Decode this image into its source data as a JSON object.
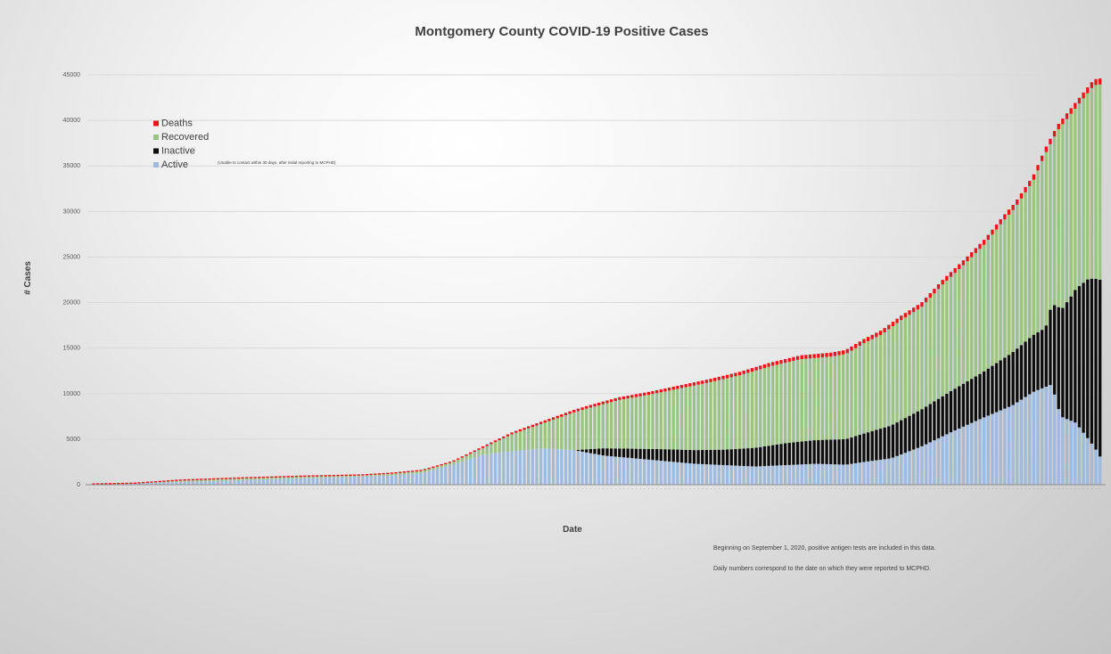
{
  "chart_data": {
    "type": "bar",
    "stacked": true,
    "title": "Montgomery County COVID-19 Positive Cases",
    "xlabel": "Date",
    "ylabel": "# Cases",
    "ylim": [
      0,
      45000
    ],
    "yticks": [
      0,
      5000,
      10000,
      15000,
      20000,
      25000,
      30000,
      35000,
      40000,
      45000
    ],
    "grid": true,
    "legend_position": "top-left",
    "series": [
      {
        "name": "Deaths",
        "color": "#e8161b"
      },
      {
        "name": "Recovered",
        "color": "#9bc386"
      },
      {
        "name": "Inactive",
        "color": "#0d0d0d"
      },
      {
        "name": "Active",
        "color": "#9fbadb"
      }
    ],
    "inactive_note": "(Unable to contact within 30 days, after initial reporting to MCPHD)",
    "bar_count": 245,
    "total_keyframes": [
      [
        0,
        0
      ],
      [
        15,
        100
      ],
      [
        30,
        450
      ],
      [
        50,
        700
      ],
      [
        70,
        900
      ],
      [
        90,
        1050
      ],
      [
        100,
        1250
      ],
      [
        110,
        1600
      ],
      [
        120,
        2600
      ],
      [
        130,
        4200
      ],
      [
        140,
        5800
      ],
      [
        150,
        7000
      ],
      [
        160,
        8200
      ],
      [
        165,
        8700
      ],
      [
        175,
        9600
      ],
      [
        185,
        10200
      ],
      [
        195,
        10900
      ],
      [
        205,
        11600
      ],
      [
        215,
        12400
      ],
      [
        225,
        13400
      ],
      [
        235,
        14200
      ],
      [
        245,
        14500
      ],
      [
        250,
        14800
      ],
      [
        256,
        16000
      ],
      [
        262,
        17000
      ],
      [
        268,
        18500
      ],
      [
        275,
        20000
      ],
      [
        282,
        22500
      ],
      [
        290,
        25000
      ],
      [
        296,
        27000
      ],
      [
        302,
        29500
      ],
      [
        306,
        31000
      ],
      [
        312,
        34000
      ],
      [
        316,
        37000
      ],
      [
        320,
        39500
      ],
      [
        326,
        42000
      ],
      [
        332,
        44500
      ],
      [
        334,
        44600
      ]
    ],
    "active_keyframes": [
      [
        0,
        0
      ],
      [
        50,
        500
      ],
      [
        100,
        1000
      ],
      [
        110,
        1300
      ],
      [
        120,
        2200
      ],
      [
        130,
        3300
      ],
      [
        140,
        3700
      ],
      [
        150,
        4000
      ],
      [
        160,
        3800
      ],
      [
        170,
        3200
      ],
      [
        180,
        2900
      ],
      [
        200,
        2300
      ],
      [
        220,
        2000
      ],
      [
        240,
        2300
      ],
      [
        250,
        2200
      ],
      [
        256,
        2500
      ],
      [
        265,
        2900
      ],
      [
        275,
        4200
      ],
      [
        285,
        5800
      ],
      [
        295,
        7300
      ],
      [
        305,
        8700
      ],
      [
        312,
        10200
      ],
      [
        318,
        11000
      ],
      [
        321,
        7500
      ],
      [
        326,
        6800
      ],
      [
        332,
        4200
      ],
      [
        334,
        3100
      ]
    ],
    "inactive_keyframes": [
      [
        0,
        0
      ],
      [
        160,
        0
      ],
      [
        170,
        800
      ],
      [
        190,
        1300
      ],
      [
        210,
        1700
      ],
      [
        230,
        2400
      ],
      [
        250,
        2800
      ],
      [
        265,
        3600
      ],
      [
        280,
        4300
      ],
      [
        295,
        5000
      ],
      [
        305,
        5800
      ],
      [
        316,
        6500
      ],
      [
        320,
        11000
      ],
      [
        325,
        14000
      ],
      [
        330,
        17500
      ],
      [
        334,
        19400
      ]
    ],
    "deaths_keyframes": [
      [
        0,
        0
      ],
      [
        100,
        50
      ],
      [
        150,
        250
      ],
      [
        200,
        350
      ],
      [
        250,
        450
      ],
      [
        300,
        550
      ],
      [
        334,
        650
      ]
    ]
  },
  "footnotes": [
    "Beginning on September 1, 2020, positive antigen tests are included in this data.",
    "Daily numbers correspond to the date on which they were reported to MCPHD."
  ]
}
